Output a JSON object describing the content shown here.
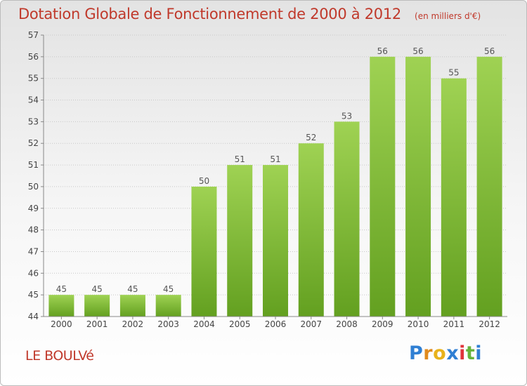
{
  "header": {
    "title": "Dotation Globale de Fonctionnement de 2000 à 2012",
    "unit": "(en milliers d'€)"
  },
  "commune": "LE BOULVé",
  "logo": {
    "letters": [
      "P",
      "r",
      "o",
      "x",
      "i",
      "t",
      "i"
    ],
    "colors": [
      "#2f7fd3",
      "#e08a1c",
      "#e8b21a",
      "#2f7fd3",
      "#e0343b",
      "#66b33b",
      "#2f7fd3"
    ]
  },
  "chart_data": {
    "type": "bar",
    "categories": [
      "2000",
      "2001",
      "2002",
      "2003",
      "2004",
      "2005",
      "2006",
      "2007",
      "2008",
      "2009",
      "2010",
      "2011",
      "2012"
    ],
    "values": [
      45,
      45,
      45,
      45,
      50,
      51,
      51,
      52,
      53,
      56,
      56,
      55,
      56
    ],
    "data_labels": [
      "45",
      "45",
      "45",
      "45",
      "50",
      "51",
      "51",
      "52",
      "53",
      "56",
      "56",
      "55",
      "56"
    ],
    "ylim": [
      44,
      57
    ],
    "y_ticks": [
      "44",
      "45",
      "46",
      "47",
      "48",
      "49",
      "50",
      "51",
      "52",
      "53",
      "54",
      "55",
      "56",
      "57"
    ],
    "grid": "horizontal dotted",
    "bar_color": "#7cbf38",
    "bar_color_light": "#9fd253",
    "bar_color_dark": "#63a020"
  }
}
